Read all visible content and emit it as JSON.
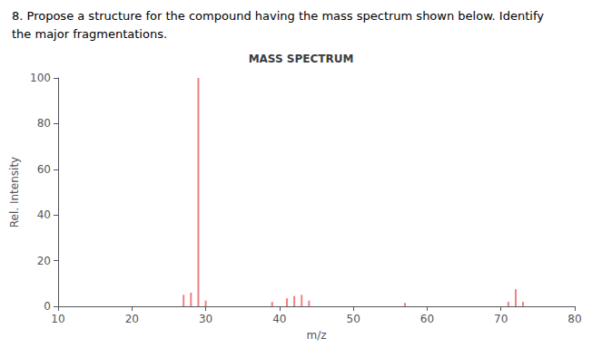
{
  "chart_data": {
    "type": "bar",
    "title": "MASS SPECTRUM",
    "annotations": [
      "8. Propose a structure for the compound having the mass spectrum shown below. Identify",
      "the major fragmentations."
    ],
    "xlabel": "m/z",
    "ylabel": "Rel. Intensity",
    "x": [
      27,
      28,
      29,
      30,
      39,
      41,
      42,
      43,
      44,
      57,
      71,
      72,
      73
    ],
    "values": [
      5,
      6,
      100,
      2.5,
      2,
      3.5,
      4.5,
      5,
      2.5,
      1.5,
      2,
      7.5,
      2
    ],
    "color": "#f08080",
    "xlim": [
      10,
      80
    ],
    "xticks": [
      10,
      20,
      30,
      40,
      50,
      60,
      70,
      80
    ],
    "ylim": [
      0,
      100
    ],
    "yticks": [
      0,
      20,
      40,
      60,
      80,
      100
    ],
    "grid": false
  }
}
